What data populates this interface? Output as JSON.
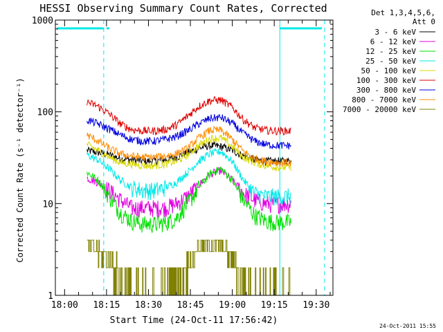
{
  "chart_data": {
    "type": "line",
    "title": "HESSI Observing Summary Count Rates, Corrected",
    "xlabel": "Start Time (24-Oct-11 17:56:42)",
    "ylabel": "Corrected Count Rate (s⁻¹ detector⁻¹)",
    "ylim": [
      1,
      1000
    ],
    "yscale": "log",
    "xlim": [
      "17:56:42",
      "19:36:00"
    ],
    "x_ticks": [
      "18:00",
      "18:15",
      "18:30",
      "18:45",
      "19:00",
      "19:15",
      "19:30"
    ],
    "y_ticks": [
      "1",
      "10",
      "100",
      "1000"
    ],
    "legend_header": [
      "Det 1,3,4,5,6,",
      "Att 0"
    ],
    "legend_position": "right",
    "footer_timestamp": "24-Oct-2011 15:55",
    "time_axis": [
      "18:08",
      "18:12",
      "18:16",
      "18:20",
      "18:24",
      "18:28",
      "18:32",
      "18:36",
      "18:40",
      "18:44",
      "18:48",
      "18:52",
      "18:56",
      "19:00",
      "19:04",
      "19:08",
      "19:12",
      "19:16",
      "19:20",
      "19:21"
    ],
    "series": [
      {
        "name": "3 - 6 keV",
        "color": "#000000",
        "values": [
          38,
          36,
          34,
          31,
          30,
          29,
          29,
          30,
          32,
          36,
          40,
          43,
          42,
          38,
          33,
          30,
          29,
          29,
          29,
          29
        ]
      },
      {
        "name": "6 - 12 keV",
        "color": "#e000e0",
        "values": [
          19,
          17,
          14,
          11,
          9,
          9,
          9,
          9,
          10,
          12,
          16,
          21,
          23,
          18,
          13,
          11,
          10,
          10,
          10,
          10
        ]
      },
      {
        "name": "12 - 25 keV",
        "color": "#00e000",
        "values": [
          22,
          18,
          12,
          8,
          6.5,
          6,
          6,
          6.2,
          7,
          10,
          15,
          21,
          24,
          18,
          11,
          7.5,
          6.5,
          6.3,
          6.3,
          6.3
        ]
      },
      {
        "name": "25 - 50 keV",
        "color": "#00e8e8",
        "values": [
          34,
          30,
          24,
          18,
          15,
          14,
          14,
          15,
          17,
          22,
          29,
          35,
          37,
          29,
          18,
          13,
          12,
          12,
          12,
          12
        ]
      },
      {
        "name": "50 - 100 keV",
        "color": "#d8d800",
        "values": [
          44,
          38,
          32,
          28,
          27,
          26,
          26,
          27,
          29,
          34,
          43,
          51,
          52,
          42,
          32,
          28,
          26,
          25,
          25,
          25
        ]
      },
      {
        "name": "100 - 300 keV",
        "color": "#e00000",
        "values": [
          128,
          115,
          95,
          74,
          64,
          62,
          62,
          64,
          72,
          90,
          115,
          133,
          135,
          112,
          82,
          67,
          63,
          62,
          62,
          62
        ]
      },
      {
        "name": "300 - 800 keV",
        "color": "#0000e0",
        "values": [
          82,
          74,
          65,
          56,
          50,
          48,
          48,
          50,
          54,
          62,
          74,
          85,
          87,
          75,
          58,
          48,
          44,
          43,
          43,
          43
        ]
      },
      {
        "name": "800 - 7000 keV",
        "color": "#ff8c00",
        "values": [
          56,
          48,
          40,
          35,
          33,
          32,
          32,
          33,
          35,
          40,
          52,
          63,
          63,
          50,
          37,
          31,
          29,
          28,
          28,
          28
        ]
      },
      {
        "name": "7000 - 20000 keV",
        "color": "#808000",
        "values": [
          3.5,
          3,
          2.5,
          1.5,
          1,
          1,
          1,
          1,
          1.5,
          2.2,
          3.3,
          3.6,
          3.5,
          2.5,
          1.5,
          1,
          1,
          1,
          1,
          1
        ]
      }
    ],
    "marker_lines": [
      {
        "time": "18:14",
        "style": "dashed",
        "color": "#00e8e8"
      },
      {
        "time": "19:17",
        "style": "solid",
        "color": "#00e8e8"
      },
      {
        "time": "19:33",
        "style": "dashed",
        "color": "#00e8e8"
      }
    ]
  }
}
